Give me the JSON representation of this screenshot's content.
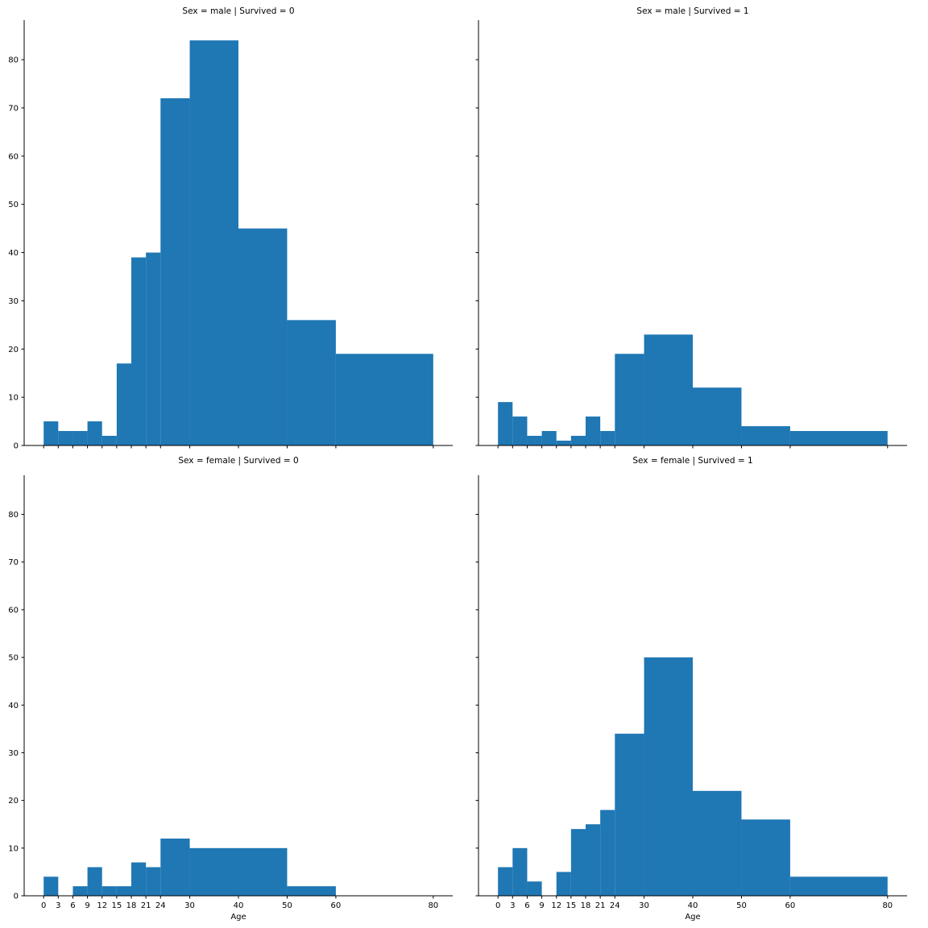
{
  "figure": {
    "background": "#ffffff",
    "bar_color": "#1f77b4",
    "axis_color": "#000000",
    "xlabel": "Age",
    "bin_edges": [
      0,
      3,
      6,
      9,
      12,
      15,
      18,
      21,
      24,
      30,
      40,
      50,
      60,
      80
    ],
    "x_ticks": [
      0,
      3,
      6,
      9,
      12,
      15,
      18,
      21,
      24,
      30,
      40,
      50,
      60,
      80
    ],
    "y_ticks": [
      0,
      10,
      20,
      30,
      40,
      50,
      60,
      70,
      80
    ],
    "xlim": [
      -4,
      84
    ],
    "ylim": [
      0,
      88.2
    ],
    "grid": false,
    "legend": "none"
  },
  "chart_data": [
    {
      "type": "histogram",
      "title": "Sex = male | Survived = 0",
      "xlabel": "Age",
      "ylabel": "",
      "bin_edges": [
        0,
        3,
        6,
        9,
        12,
        15,
        18,
        21,
        24,
        30,
        40,
        50,
        60,
        80
      ],
      "counts": [
        5,
        3,
        3,
        5,
        2,
        17,
        39,
        40,
        72,
        84,
        45,
        26,
        19
      ]
    },
    {
      "type": "histogram",
      "title": "Sex = male | Survived = 1",
      "xlabel": "Age",
      "ylabel": "",
      "bin_edges": [
        0,
        3,
        6,
        9,
        12,
        15,
        18,
        21,
        24,
        30,
        40,
        50,
        60,
        80
      ],
      "counts": [
        9,
        6,
        2,
        3,
        1,
        2,
        6,
        3,
        19,
        23,
        12,
        4,
        3
      ]
    },
    {
      "type": "histogram",
      "title": "Sex = female | Survived = 0",
      "xlabel": "Age",
      "ylabel": "",
      "bin_edges": [
        0,
        3,
        6,
        9,
        12,
        15,
        18,
        21,
        24,
        30,
        40,
        50,
        60,
        80
      ],
      "counts": [
        4,
        0,
        2,
        6,
        2,
        2,
        7,
        6,
        12,
        10,
        10,
        2,
        0
      ]
    },
    {
      "type": "histogram",
      "title": "Sex = female | Survived = 1",
      "xlabel": "Age",
      "ylabel": "",
      "bin_edges": [
        0,
        3,
        6,
        9,
        12,
        15,
        18,
        21,
        24,
        30,
        40,
        50,
        60,
        80
      ],
      "counts": [
        6,
        10,
        3,
        0,
        5,
        14,
        15,
        18,
        34,
        50,
        22,
        16,
        4
      ]
    }
  ]
}
